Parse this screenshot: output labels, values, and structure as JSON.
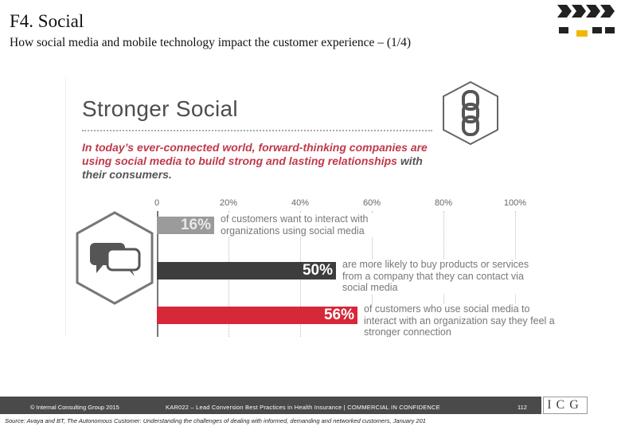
{
  "slide": {
    "title": "F4. Social",
    "subtitle": "How social media and mobile technology impact the customer experience – (1/4)"
  },
  "infographic": {
    "heading": "Stronger Social",
    "intro_red": "In today’s ever-connected world, forward-thinking companies are using social media to build strong and lasting relationships",
    "intro_dark": "with their consumers.",
    "icon_chain": "chain-link-icon",
    "icon_chat": "chat-bubbles-icon",
    "axis_ticks": [
      "0",
      "20%",
      "40%",
      "60%",
      "80%",
      "100%"
    ],
    "bars": [
      {
        "value_label": "16%",
        "value": 16,
        "description": "of customers want to interact with organizations using social media",
        "color": "#9b9b9b"
      },
      {
        "value_label": "50%",
        "value": 50,
        "description": "are more likely to buy products or services from a company that they can contact via social media",
        "color": "#3d3d3d"
      },
      {
        "value_label": "56%",
        "value": 56,
        "description": "of customers who use social media to interact with an organization say they feel a stronger connection",
        "color": "#d62839"
      }
    ]
  },
  "footer": {
    "copyright": "© Internal Consulting Group 2015",
    "document": "KAR022 – Lead Conversion Best Practices in Health Insurance  |  COMMERCIAL IN CONFIDENCE",
    "page_number": "112",
    "brand": "ICG",
    "source": "Source: Avaya and BT, The Autonomous Customer: Understanding the challenges of dealing with informed, demanding and networked customers, January 201"
  },
  "colors": {
    "accent_red": "#c0394b",
    "logo_gold": "#f2b705"
  }
}
